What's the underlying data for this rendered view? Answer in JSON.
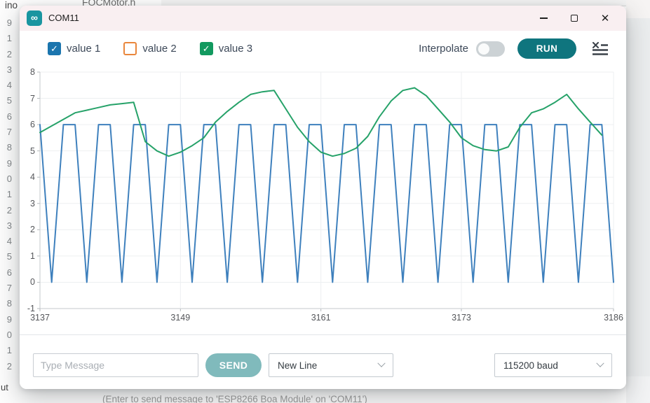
{
  "background": {
    "editor_tab_partial": "ino",
    "editor_tab_title": "FOCMotor.h",
    "line_number_digits": [
      "9",
      "1",
      "2",
      "3",
      "4",
      "5",
      "6",
      "7",
      "8",
      "9",
      "0",
      "1",
      "2",
      "3",
      "4",
      "5",
      "6",
      "7",
      "8",
      "9",
      "0",
      "1",
      "2"
    ],
    "output_panel_partial": "ut",
    "status_caption": "(Enter to send message to 'ESP8266 Boa Module' on 'COM11')"
  },
  "window": {
    "title": "COM11",
    "app_icon_glyph": "∞",
    "minimize_icon": "minimize",
    "maximize_icon": "maximize",
    "close_icon": "close"
  },
  "toolbar": {
    "series_toggles": [
      {
        "label": "value 1",
        "checked": true,
        "color": "#1b75ae"
      },
      {
        "label": "value 2",
        "checked": false,
        "color": "#e9863c"
      },
      {
        "label": "value 3",
        "checked": true,
        "color": "#12995f"
      }
    ],
    "check_glyph": "✓",
    "interpolate_label": "Interpolate",
    "interpolate_on": false,
    "run_label": "RUN",
    "accent_color": "#0f757e"
  },
  "chart_data": {
    "type": "line",
    "xlim": [
      3137,
      3186
    ],
    "ylim": [
      -1,
      8
    ],
    "x_ticks": [
      3137,
      3149,
      3161,
      3173,
      3186
    ],
    "y_ticks": [
      8,
      7,
      6,
      5,
      4,
      3,
      2,
      1,
      0,
      -1
    ],
    "grid": true,
    "legend_position": "top-left-toolbar",
    "series": [
      {
        "name": "value 1",
        "color": "#3e80bd",
        "x_start": 3137,
        "x_step": 1,
        "values": [
          6,
          0,
          6,
          6,
          0,
          6,
          6,
          0,
          6,
          6,
          0,
          6,
          6,
          0,
          6,
          6,
          0,
          6,
          6,
          0,
          6,
          6,
          0,
          6,
          6,
          0,
          6,
          6,
          0,
          6,
          6,
          0,
          6,
          6,
          0,
          6,
          6,
          0,
          6,
          6,
          0,
          6,
          6,
          0,
          6,
          6,
          0,
          6,
          6,
          0
        ]
      },
      {
        "name": "value 3",
        "color": "#26a269",
        "x_start": 3137,
        "x_step": 1,
        "values": [
          5.7,
          5.95,
          6.2,
          6.45,
          6.55,
          6.65,
          6.75,
          6.8,
          6.85,
          5.35,
          5.0,
          4.8,
          4.95,
          5.2,
          5.5,
          6.1,
          6.5,
          6.85,
          7.15,
          7.25,
          7.3,
          6.6,
          5.9,
          5.35,
          4.95,
          4.8,
          4.9,
          5.1,
          5.55,
          6.3,
          6.9,
          7.3,
          7.4,
          7.1,
          6.6,
          6.1,
          5.5,
          5.2,
          5.05,
          5.0,
          5.15,
          5.9,
          6.45,
          6.6,
          6.85,
          7.15,
          6.6,
          6.1,
          5.6
        ]
      }
    ]
  },
  "bottom_bar": {
    "message_placeholder": "Type Message",
    "send_label": "SEND",
    "line_ending_value": "New Line",
    "baud_value": "115200 baud"
  }
}
